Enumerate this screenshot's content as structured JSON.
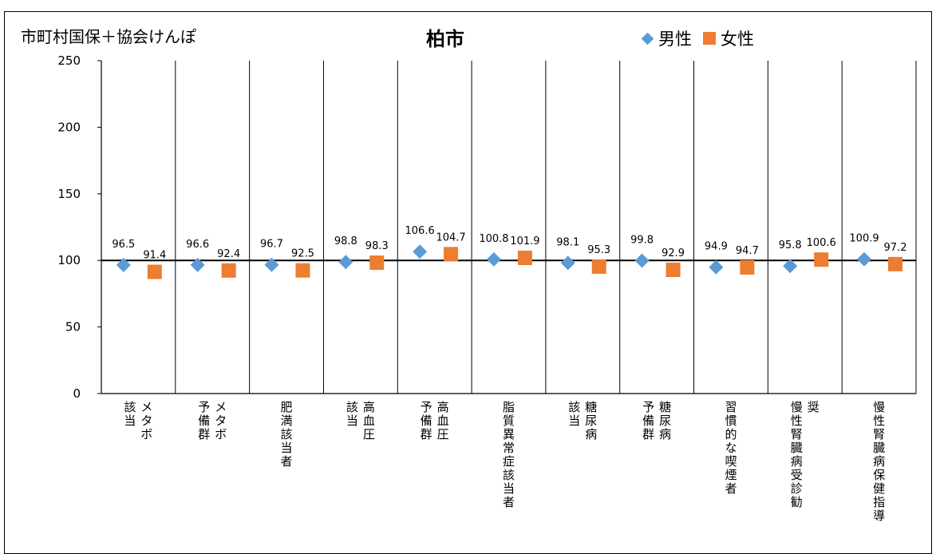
{
  "corner_label": "市町村国保＋協会けんぽ",
  "chart_data": {
    "type": "scatter",
    "title": "柏市",
    "xlabel": "",
    "ylabel": "",
    "ylim": [
      0,
      250
    ],
    "yticks": [
      0,
      50,
      100,
      150,
      200,
      250
    ],
    "reference_line": 100,
    "grid": "vertical category separators",
    "legend_position": "top-right",
    "categories": [
      [
        "メタボ",
        "該当"
      ],
      [
        "メタボ",
        "予備群"
      ],
      [
        "肥満該当者"
      ],
      [
        "高血圧",
        "該当"
      ],
      [
        "高血圧",
        "予備群"
      ],
      [
        "脂質異常症該当者"
      ],
      [
        "糖尿病",
        "該当"
      ],
      [
        "糖尿病",
        "予備群"
      ],
      [
        "習慣的な喫煙者"
      ],
      [
        "奨",
        "慢性腎臓病受診勧"
      ],
      [
        "慢性腎臓病保健指導"
      ]
    ],
    "series": [
      {
        "name": "男性",
        "color": "#5b9bd5",
        "marker": "diamond",
        "values": [
          96.5,
          96.6,
          96.7,
          98.8,
          106.6,
          100.8,
          98.1,
          99.8,
          94.9,
          95.8,
          100.9
        ]
      },
      {
        "name": "女性",
        "color": "#ed7d31",
        "marker": "square",
        "values": [
          91.4,
          92.4,
          92.5,
          98.3,
          104.7,
          101.9,
          95.3,
          92.9,
          94.7,
          100.6,
          97.2
        ]
      }
    ]
  }
}
